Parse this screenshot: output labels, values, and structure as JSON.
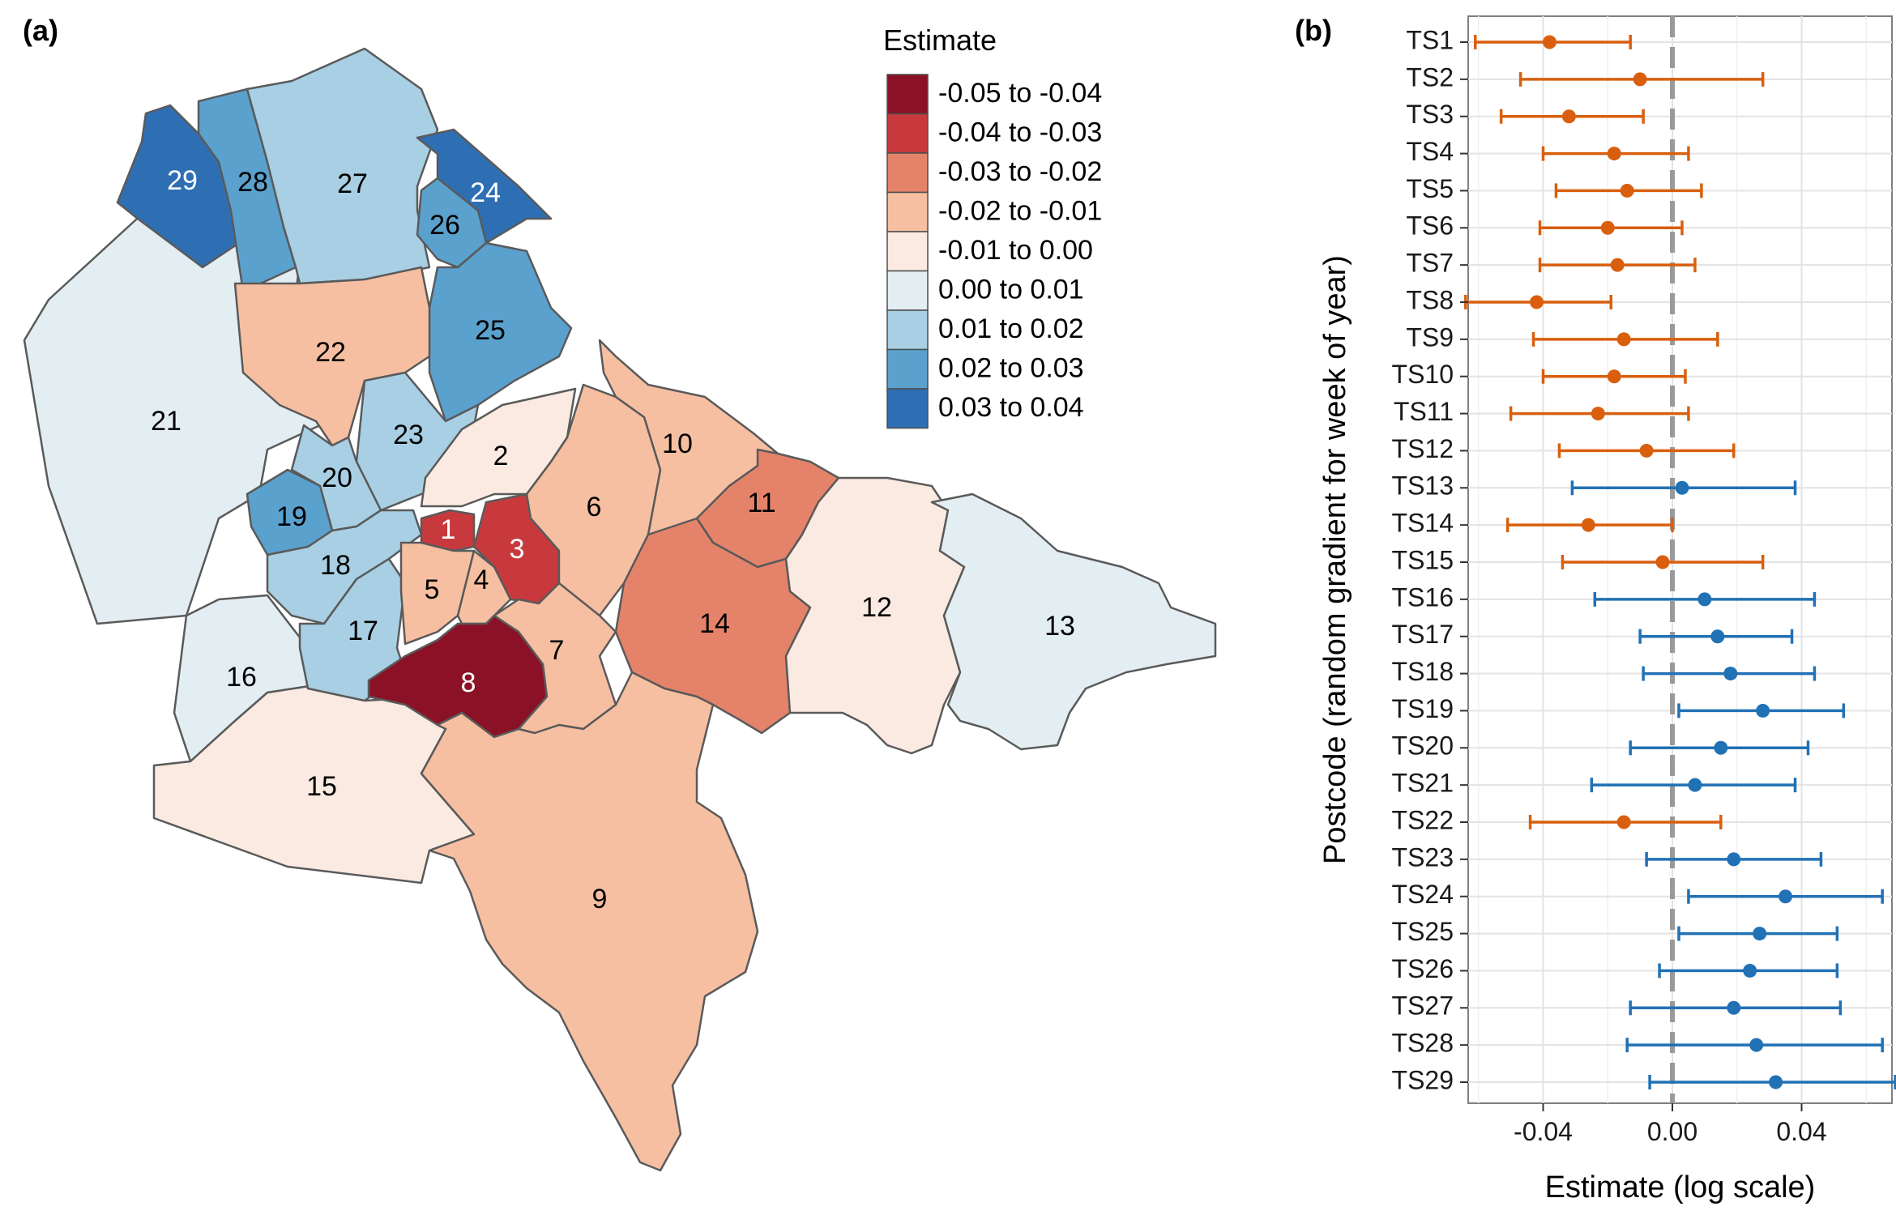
{
  "panels": {
    "a": "(a)",
    "b": "(b)"
  },
  "colors": {
    "negative": "#D95F0E",
    "positive": "#2171B5",
    "zero_line": "#9a9a9a",
    "map_palette": [
      "#8B1126",
      "#C8393E",
      "#E5836A",
      "#F6BFA2",
      "#FBEAE1",
      "#E3EEF3",
      "#A8CFE3",
      "#5AA1CE",
      "#2E6FB4"
    ]
  },
  "map": {
    "legend_title": "Estimate",
    "legend_items": [
      "-0.05 to -0.04",
      "-0.04 to -0.03",
      "-0.03 to -0.02",
      "-0.02 to -0.01",
      "-0.01 to 0.00",
      "0.00 to 0.01",
      "0.01 to 0.02",
      "0.02 to 0.03",
      "0.03 to 0.04"
    ],
    "regions": [
      {
        "id": "1",
        "class": 1
      },
      {
        "id": "2",
        "class": 4
      },
      {
        "id": "3",
        "class": 1
      },
      {
        "id": "4",
        "class": 3
      },
      {
        "id": "5",
        "class": 3
      },
      {
        "id": "6",
        "class": 3
      },
      {
        "id": "7",
        "class": 3
      },
      {
        "id": "8",
        "class": 0
      },
      {
        "id": "9",
        "class": 3
      },
      {
        "id": "10",
        "class": 3
      },
      {
        "id": "11",
        "class": 2
      },
      {
        "id": "12",
        "class": 4
      },
      {
        "id": "13",
        "class": 5
      },
      {
        "id": "14",
        "class": 2
      },
      {
        "id": "15",
        "class": 4
      },
      {
        "id": "16",
        "class": 5
      },
      {
        "id": "17",
        "class": 6
      },
      {
        "id": "18",
        "class": 6
      },
      {
        "id": "19",
        "class": 7
      },
      {
        "id": "20",
        "class": 6
      },
      {
        "id": "21",
        "class": 5
      },
      {
        "id": "22",
        "class": 3
      },
      {
        "id": "23",
        "class": 6
      },
      {
        "id": "24",
        "class": 8
      },
      {
        "id": "25",
        "class": 7
      },
      {
        "id": "26",
        "class": 7
      },
      {
        "id": "27",
        "class": 6
      },
      {
        "id": "28",
        "class": 7
      },
      {
        "id": "29",
        "class": 8
      }
    ]
  },
  "chart_data": {
    "type": "errorbar",
    "xlabel": "Estimate (log scale)",
    "ylabel": "Postcode (random gradient for week of year)",
    "xlim": [
      -0.064,
      0.07
    ],
    "xticks": [
      -0.04,
      0.0,
      0.04
    ],
    "xtick_labels": [
      "-0.04",
      "0.00",
      "0.04"
    ],
    "grid": true,
    "reference_line": 0.0,
    "categories": [
      "TS1",
      "TS2",
      "TS3",
      "TS4",
      "TS5",
      "TS6",
      "TS7",
      "TS8",
      "TS9",
      "TS10",
      "TS11",
      "TS12",
      "TS13",
      "TS14",
      "TS15",
      "TS16",
      "TS17",
      "TS18",
      "TS19",
      "TS20",
      "TS21",
      "TS22",
      "TS23",
      "TS24",
      "TS25",
      "TS26",
      "TS27",
      "TS28",
      "TS29"
    ],
    "estimate": [
      -0.038,
      -0.01,
      -0.032,
      -0.018,
      -0.014,
      -0.02,
      -0.017,
      -0.042,
      -0.015,
      -0.018,
      -0.023,
      -0.008,
      0.003,
      -0.026,
      -0.003,
      0.01,
      0.014,
      0.018,
      0.028,
      0.015,
      0.007,
      -0.015,
      0.019,
      0.035,
      0.027,
      0.024,
      0.019,
      0.026,
      0.032
    ],
    "lower": [
      -0.061,
      -0.047,
      -0.053,
      -0.04,
      -0.036,
      -0.041,
      -0.041,
      -0.064,
      -0.043,
      -0.04,
      -0.05,
      -0.035,
      -0.031,
      -0.051,
      -0.034,
      -0.024,
      -0.01,
      -0.009,
      0.002,
      -0.013,
      -0.025,
      -0.044,
      -0.008,
      0.005,
      0.002,
      -0.004,
      -0.013,
      -0.014,
      -0.007
    ],
    "upper": [
      -0.013,
      0.028,
      -0.009,
      0.005,
      0.009,
      0.003,
      0.007,
      -0.019,
      0.014,
      0.004,
      0.005,
      0.019,
      0.038,
      0.0,
      0.028,
      0.044,
      0.037,
      0.044,
      0.053,
      0.042,
      0.038,
      0.015,
      0.046,
      0.065,
      0.051,
      0.051,
      0.052,
      0.065,
      0.069
    ]
  }
}
